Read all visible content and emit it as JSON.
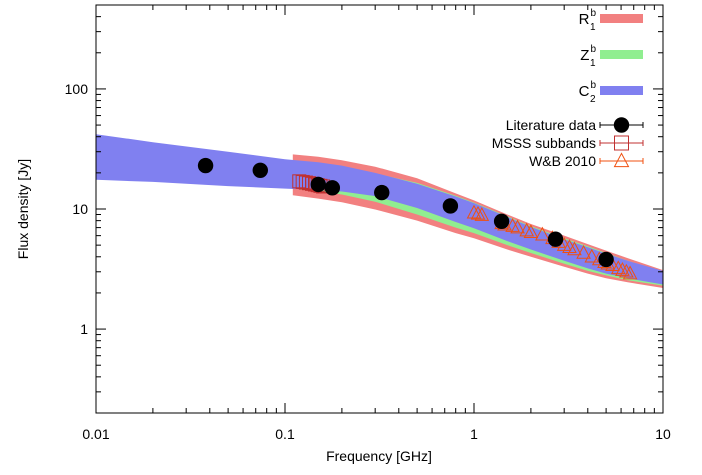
{
  "chart_data": {
    "type": "scatter",
    "xlabel": "Frequency [GHz]",
    "ylabel": "Flux density [Jy]",
    "x_scale": "log",
    "y_scale": "log",
    "xlim": [
      0.01,
      10
    ],
    "ylim": [
      0.2,
      500
    ],
    "x_ticks": [
      {
        "value": 0.01,
        "label": "0.01"
      },
      {
        "value": 0.1,
        "label": "0.1"
      },
      {
        "value": 1,
        "label": "1"
      },
      {
        "value": 10,
        "label": "10"
      }
    ],
    "y_ticks": [
      {
        "value": 1,
        "label": "1"
      },
      {
        "value": 10,
        "label": "10"
      },
      {
        "value": 100,
        "label": "100"
      }
    ],
    "legend_position": "top-right",
    "bands": [
      {
        "name": "R",
        "sup": "b",
        "sub": "1",
        "color": "#f28080",
        "x": [
          0.11,
          0.15,
          0.2,
          0.3,
          0.5,
          0.8,
          1.0,
          1.5,
          2.0,
          3.0,
          4.0,
          5.0,
          6.5,
          10.0
        ],
        "lower": [
          13.0,
          12.2,
          11.4,
          9.9,
          8.0,
          6.3,
          5.7,
          4.6,
          4.0,
          3.3,
          2.9,
          2.65,
          2.45,
          2.2
        ],
        "upper": [
          28.5,
          27.2,
          25.5,
          22.5,
          18.0,
          13.5,
          11.8,
          9.0,
          7.5,
          6.0,
          5.1,
          4.5,
          3.9,
          3.1
        ]
      },
      {
        "name": "Z",
        "sup": "b",
        "sub": "1",
        "color": "#90ee90",
        "x": [
          0.12,
          0.15,
          0.2,
          0.3,
          0.5,
          0.8,
          1.0,
          1.5,
          2.0,
          3.0,
          4.0,
          5.0,
          6.5,
          10.0
        ],
        "lower": [
          14.5,
          14.0,
          13.2,
          11.5,
          9.0,
          7.0,
          6.3,
          5.0,
          4.3,
          3.5,
          3.05,
          2.8,
          2.55,
          2.3
        ],
        "upper": [
          23.0,
          22.5,
          21.8,
          19.8,
          16.5,
          12.9,
          11.3,
          8.7,
          7.2,
          5.7,
          4.9,
          4.3,
          3.7,
          3.0
        ]
      },
      {
        "name": "C",
        "sup": "b",
        "sub": "2",
        "color": "#8080f0",
        "x": [
          0.01,
          0.02,
          0.05,
          0.1,
          0.15,
          0.2,
          0.3,
          0.5,
          0.8,
          1.0,
          1.5,
          2.0,
          3.0,
          4.0,
          5.0,
          6.5,
          10.0
        ],
        "lower": [
          17.5,
          16.8,
          15.5,
          14.8,
          14.4,
          14.0,
          12.8,
          10.2,
          7.8,
          6.9,
          5.4,
          4.6,
          3.7,
          3.2,
          2.9,
          2.65,
          2.35
        ],
        "upper": [
          42.0,
          36.0,
          30.0,
          26.0,
          24.5,
          23.0,
          20.0,
          16.2,
          12.7,
          11.2,
          8.6,
          7.1,
          5.6,
          4.8,
          4.25,
          3.7,
          3.05
        ]
      }
    ],
    "series": [
      {
        "name": "Literature data",
        "marker": "filled-circle",
        "color": "#000000",
        "points": [
          {
            "x": 0.038,
            "y": 23.0,
            "err": 2.6
          },
          {
            "x": 0.074,
            "y": 21.0,
            "err": 0.9
          },
          {
            "x": 0.15,
            "y": 16.0,
            "err": 0.6
          },
          {
            "x": 0.178,
            "y": 15.0,
            "err": 0.5
          },
          {
            "x": 0.325,
            "y": 13.7,
            "err": 0.4
          },
          {
            "x": 0.75,
            "y": 10.6,
            "err": 0.3
          },
          {
            "x": 1.4,
            "y": 7.9,
            "err": 0.3
          },
          {
            "x": 2.7,
            "y": 5.6,
            "err": 0.2
          },
          {
            "x": 5.0,
            "y": 3.8,
            "err": 0.15
          }
        ]
      },
      {
        "name": "MSSS subbands",
        "marker": "open-square",
        "color": "#c03030",
        "points": [
          {
            "x": 0.119,
            "y": 17.0
          },
          {
            "x": 0.124,
            "y": 16.8
          },
          {
            "x": 0.129,
            "y": 16.6
          },
          {
            "x": 0.134,
            "y": 16.4
          },
          {
            "x": 0.139,
            "y": 16.2
          },
          {
            "x": 0.144,
            "y": 16.0
          },
          {
            "x": 0.149,
            "y": 15.8
          },
          {
            "x": 0.154,
            "y": 15.6
          },
          {
            "x": 0.159,
            "y": 15.4
          }
        ]
      },
      {
        "name": "W&B 2010",
        "marker": "open-triangle",
        "color": "#f05010",
        "points": [
          {
            "x": 1.0,
            "y": 9.3
          },
          {
            "x": 1.05,
            "y": 9.1
          },
          {
            "x": 1.1,
            "y": 8.9
          },
          {
            "x": 1.4,
            "y": 7.6
          },
          {
            "x": 1.45,
            "y": 7.4
          },
          {
            "x": 1.6,
            "y": 7.2
          },
          {
            "x": 1.7,
            "y": 7.0
          },
          {
            "x": 1.9,
            "y": 6.6
          },
          {
            "x": 2.0,
            "y": 6.4
          },
          {
            "x": 2.3,
            "y": 6.1
          },
          {
            "x": 2.6,
            "y": 5.7
          },
          {
            "x": 2.8,
            "y": 5.3
          },
          {
            "x": 3.0,
            "y": 5.0
          },
          {
            "x": 3.2,
            "y": 4.8
          },
          {
            "x": 3.4,
            "y": 4.6
          },
          {
            "x": 3.8,
            "y": 4.3
          },
          {
            "x": 4.2,
            "y": 4.0
          },
          {
            "x": 4.6,
            "y": 3.8
          },
          {
            "x": 4.9,
            "y": 3.6
          },
          {
            "x": 5.1,
            "y": 3.5
          },
          {
            "x": 5.4,
            "y": 3.4
          },
          {
            "x": 5.8,
            "y": 3.2
          },
          {
            "x": 6.1,
            "y": 3.1
          },
          {
            "x": 6.4,
            "y": 3.0
          },
          {
            "x": 6.7,
            "y": 2.9
          }
        ]
      }
    ]
  }
}
